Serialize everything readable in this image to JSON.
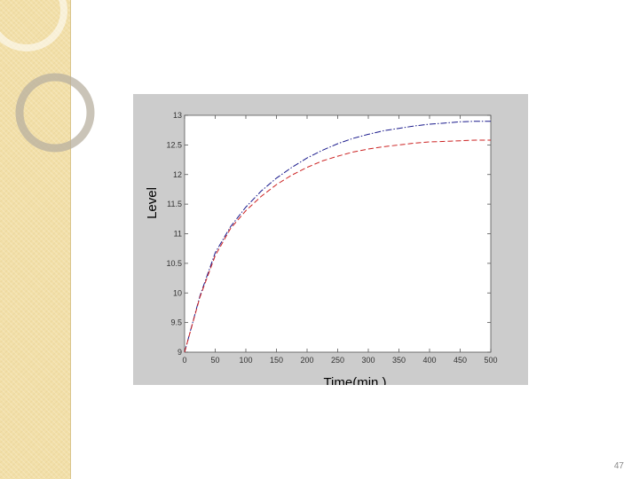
{
  "slide": {
    "page_number": "47",
    "sidebar_color": "#f2dfa8"
  },
  "chart_data": {
    "type": "line",
    "title": "",
    "xlabel": "Time(min.)",
    "ylabel": "Level",
    "xlim": [
      0,
      500
    ],
    "ylim": [
      9,
      13
    ],
    "x_ticks": [
      0,
      50,
      100,
      150,
      200,
      250,
      300,
      350,
      400,
      450,
      500
    ],
    "y_ticks": [
      9,
      9.5,
      10,
      10.5,
      11,
      11.5,
      12,
      12.5,
      13
    ],
    "x_tick_labels": [
      "0",
      "50",
      "100",
      "150",
      "200",
      "250",
      "300",
      "350",
      "400",
      "450",
      "500"
    ],
    "y_tick_labels": [
      "9",
      "9.5",
      "10",
      "10.5",
      "11",
      "11.5",
      "12",
      "12.5",
      "13"
    ],
    "grid": false,
    "legend": false,
    "x": [
      0,
      25,
      50,
      75,
      100,
      125,
      150,
      175,
      200,
      225,
      250,
      275,
      300,
      325,
      350,
      375,
      400,
      425,
      450,
      475,
      500
    ],
    "series": [
      {
        "color": "#1a1a8c",
        "line_style": "dash-dot",
        "values": [
          9.0,
          9.95,
          10.68,
          11.12,
          11.45,
          11.72,
          11.94,
          12.12,
          12.28,
          12.41,
          12.52,
          12.61,
          12.68,
          12.74,
          12.78,
          12.82,
          12.85,
          12.87,
          12.89,
          12.9,
          12.9
        ]
      },
      {
        "color": "#cc2222",
        "line_style": "dashed",
        "values": [
          9.0,
          9.93,
          10.63,
          11.09,
          11.39,
          11.63,
          11.83,
          11.99,
          12.12,
          12.23,
          12.31,
          12.38,
          12.43,
          12.47,
          12.5,
          12.53,
          12.55,
          12.56,
          12.57,
          12.58,
          12.58
        ]
      }
    ]
  }
}
